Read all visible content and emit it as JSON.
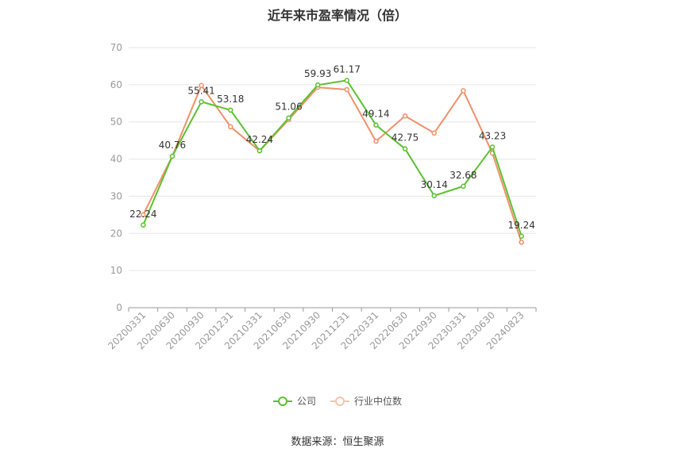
{
  "chart_data": {
    "type": "line",
    "title": "近年来市盈率情况（倍）",
    "categories": [
      "20200331",
      "20200630",
      "20200930",
      "20201231",
      "20210331",
      "20210630",
      "20210930",
      "20211231",
      "20220331",
      "20220630",
      "20220930",
      "20230331",
      "20230630",
      "20240823"
    ],
    "series": [
      {
        "name": "公司",
        "color": "#5bc12f",
        "values": [
          22.24,
          40.76,
          55.41,
          53.18,
          42.24,
          51.06,
          59.93,
          61.17,
          49.14,
          42.75,
          30.14,
          32.68,
          43.23,
          19.24
        ],
        "labels": [
          "22.24",
          "40.76",
          "55.41",
          "53.18",
          "42.24",
          "51.06",
          "59.93",
          "61.17",
          "49.14",
          "42.75",
          "30.14",
          "32.68",
          "43.23",
          "19.24"
        ]
      },
      {
        "name": "行业中位数",
        "color": "#f0906a",
        "values": [
          25.0,
          40.8,
          59.8,
          48.7,
          42.2,
          50.6,
          59.3,
          58.7,
          44.8,
          51.6,
          47.0,
          58.4,
          41.6,
          17.6
        ]
      }
    ],
    "ylim": [
      0,
      70
    ],
    "yticks": [
      0,
      10,
      20,
      30,
      40,
      50,
      60,
      70
    ],
    "grid": true,
    "legend": "bottom-center"
  },
  "source": "数据来源：恒生聚源"
}
